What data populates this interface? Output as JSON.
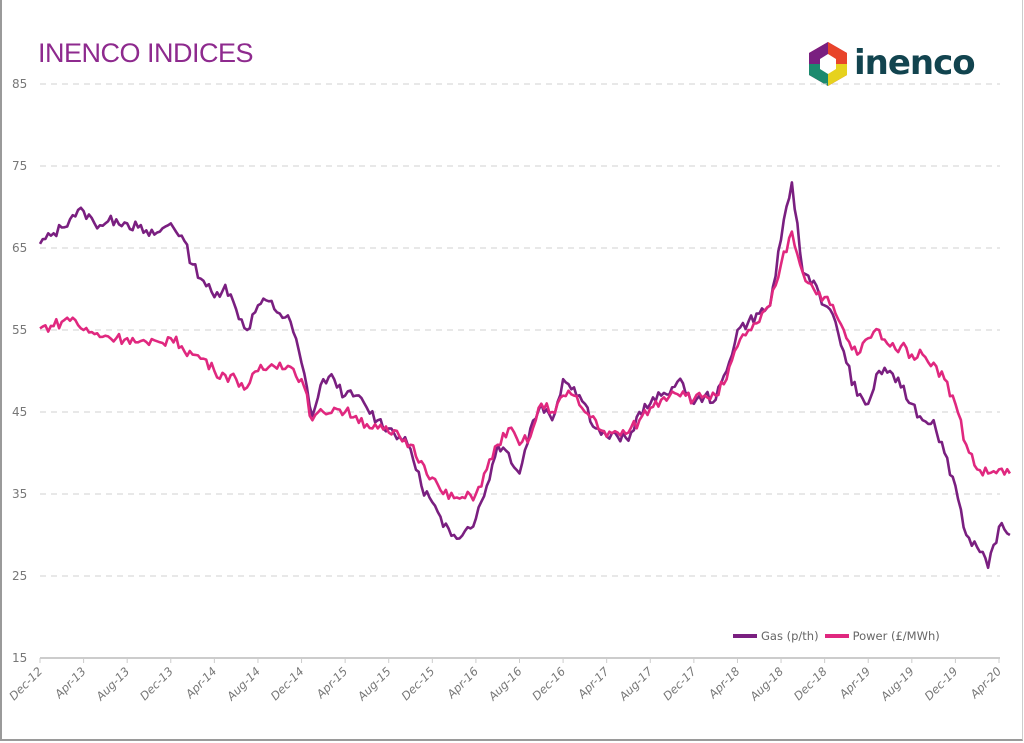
{
  "chart_data": {
    "type": "line",
    "title": "INENCO INDICES",
    "brand": "inenco",
    "xlabel": "",
    "ylabel": "",
    "ylim": [
      15,
      85
    ],
    "yticks": [
      15,
      25,
      35,
      45,
      55,
      65,
      75,
      85
    ],
    "grid": "horizontal dashed",
    "legend": "bottom-right",
    "xtick_labels": [
      "Dec-12",
      "Apr-13",
      "Aug-13",
      "Dec-13",
      "Apr-14",
      "Aug-14",
      "Dec-14",
      "Apr-15",
      "Aug-15",
      "Dec-15",
      "Apr-16",
      "Aug-16",
      "Dec-16",
      "Apr-17",
      "Aug-17",
      "Dec-17",
      "Apr-18",
      "Aug-18",
      "Dec-18",
      "Apr-19",
      "Aug-19",
      "Dec-19",
      "Apr-20"
    ],
    "x_start": "2012-12",
    "x_step": "1 month",
    "series": [
      {
        "name": "Gas (p/th)",
        "color": "#7a1f80",
        "values": [
          65.5,
          66.5,
          67.5,
          69,
          69.5,
          68,
          68,
          68.5,
          68,
          67.5,
          66.5,
          67,
          68,
          66.5,
          63,
          61,
          59,
          60.5,
          57.5,
          55,
          58,
          58.5,
          57,
          56,
          51,
          44.5,
          49,
          49,
          47,
          47,
          45.5,
          44,
          43,
          42,
          40.5,
          36,
          34,
          31,
          30,
          30.5,
          32,
          36,
          41,
          40,
          37.5,
          43,
          46,
          44,
          49,
          48,
          46,
          43,
          42,
          42,
          41.5,
          45,
          46,
          47,
          48,
          48.5,
          46,
          47,
          46.5,
          50,
          55,
          56,
          57,
          58,
          66,
          73,
          62,
          61,
          58,
          56,
          51,
          47,
          46,
          50,
          50,
          48,
          46,
          44,
          44,
          40,
          36,
          30,
          28.5,
          26,
          31,
          30
        ]
      },
      {
        "name": "Power (£/MWh)",
        "color": "#e0287f",
        "values": [
          55.2,
          55.5,
          56,
          56.5,
          55,
          54.5,
          54.3,
          54,
          54,
          53.5,
          53.2,
          53.5,
          54,
          53,
          52,
          51.5,
          50,
          49.5,
          49,
          48,
          50,
          50.5,
          51,
          50.5,
          49,
          44,
          45,
          45.5,
          45,
          44.5,
          43.5,
          43,
          42.5,
          42,
          41,
          39,
          37,
          35,
          34.5,
          34.5,
          35,
          38,
          41,
          43,
          41,
          42,
          46,
          45,
          47,
          47,
          45,
          44,
          42,
          42.5,
          42.5,
          44,
          45.5,
          46.5,
          47.5,
          47.5,
          46.5,
          47,
          47,
          49,
          53,
          55,
          56,
          58,
          63,
          67,
          62,
          60,
          59,
          57,
          54,
          52,
          54,
          55,
          53,
          53,
          52,
          52,
          51,
          49,
          46,
          41,
          38,
          37.5,
          38,
          37.5
        ]
      }
    ]
  }
}
